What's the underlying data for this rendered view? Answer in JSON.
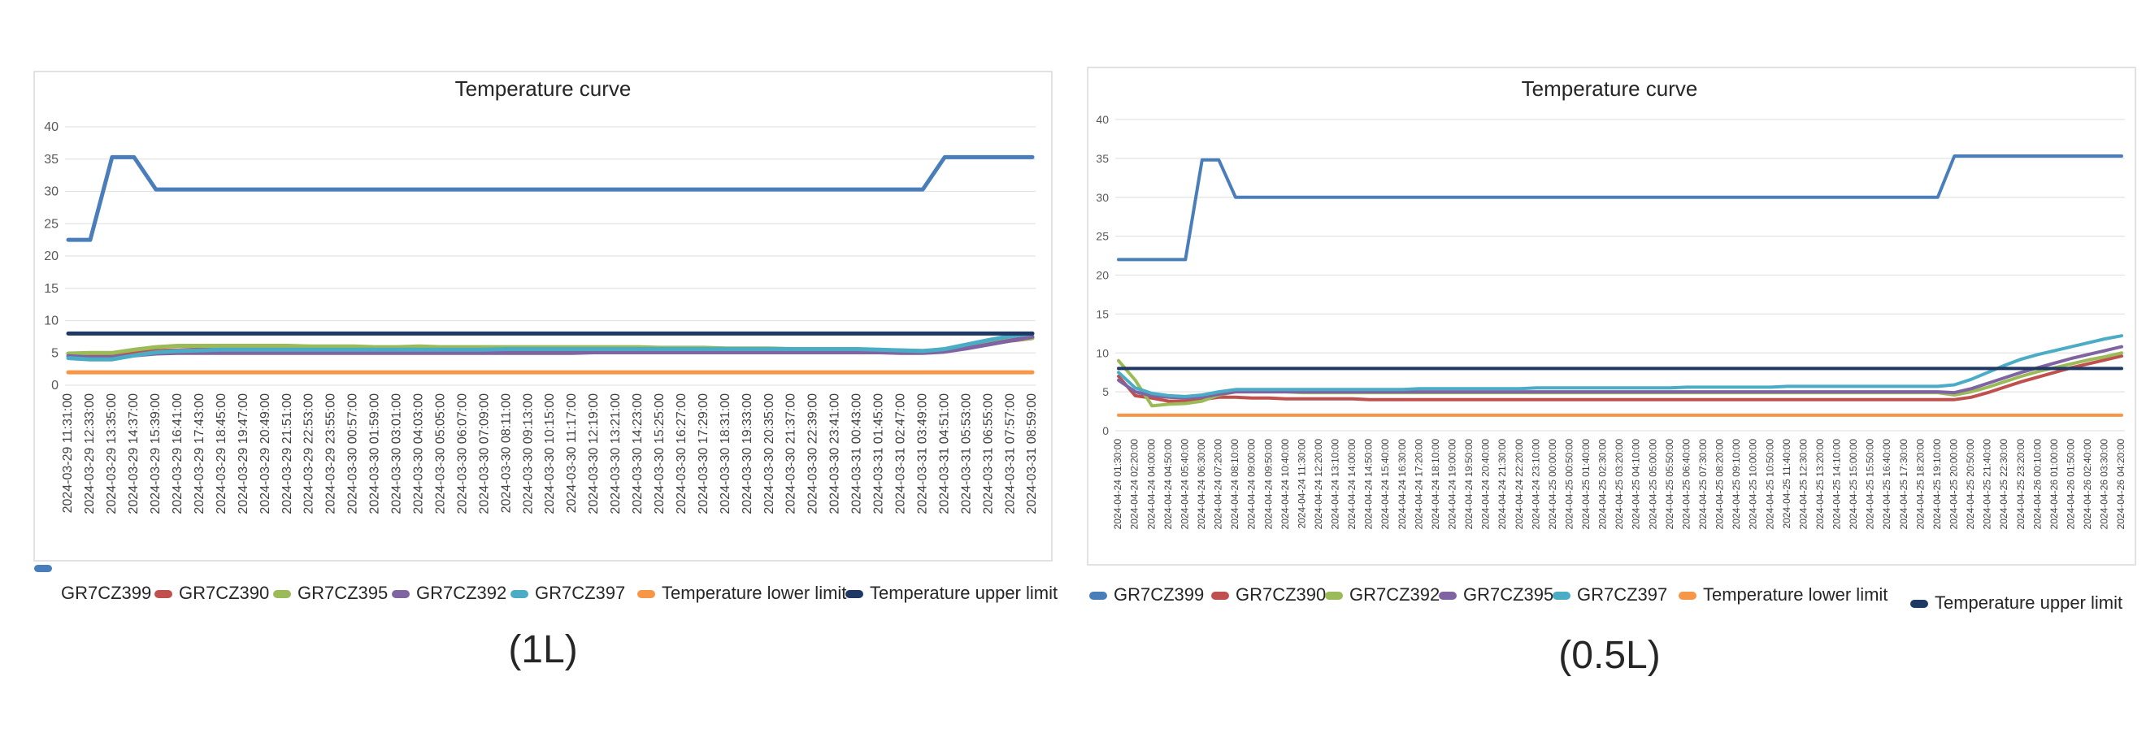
{
  "chart_data": [
    {
      "type": "line",
      "title": "Temperature curve",
      "caption": "(1L)",
      "xlabel": "",
      "ylabel": "",
      "ylim": [
        0,
        40
      ],
      "yticks": [
        0,
        5,
        10,
        15,
        20,
        25,
        30,
        35,
        40
      ],
      "grid": true,
      "legend_position": "bottom",
      "categories": [
        "2024-03-29 11:31:00",
        "2024-03-29 12:33:00",
        "2024-03-29 13:35:00",
        "2024-03-29 14:37:00",
        "2024-03-29 15:39:00",
        "2024-03-29 16:41:00",
        "2024-03-29 17:43:00",
        "2024-03-29 18:45:00",
        "2024-03-29 19:47:00",
        "2024-03-29 20:49:00",
        "2024-03-29 21:51:00",
        "2024-03-29 22:53:00",
        "2024-03-29 23:55:00",
        "2024-03-30 00:57:00",
        "2024-03-30 01:59:00",
        "2024-03-30 03:01:00",
        "2024-03-30 04:03:00",
        "2024-03-30 05:05:00",
        "2024-03-30 06:07:00",
        "2024-03-30 07:09:00",
        "2024-03-30 08:11:00",
        "2024-03-30 09:13:00",
        "2024-03-30 10:15:00",
        "2024-03-30 11:17:00",
        "2024-03-30 12:19:00",
        "2024-03-30 13:21:00",
        "2024-03-30 14:23:00",
        "2024-03-30 15:25:00",
        "2024-03-30 16:27:00",
        "2024-03-30 17:29:00",
        "2024-03-30 18:31:00",
        "2024-03-30 19:33:00",
        "2024-03-30 20:35:00",
        "2024-03-30 21:37:00",
        "2024-03-30 22:39:00",
        "2024-03-30 23:41:00",
        "2024-03-31 00:43:00",
        "2024-03-31 01:45:00",
        "2024-03-31 02:47:00",
        "2024-03-31 03:49:00",
        "2024-03-31 04:51:00",
        "2024-03-31 05:53:00",
        "2024-03-31 06:55:00",
        "2024-03-31 07:57:00",
        "2024-03-31 08:59:00"
      ],
      "series": [
        {
          "name": "GR7CZ399",
          "color": "#4a7ebb",
          "values": [
            22.5,
            22.5,
            35.3,
            35.3,
            30.3,
            30.3,
            30.3,
            30.3,
            30.3,
            30.3,
            30.3,
            30.3,
            30.3,
            30.3,
            30.3,
            30.3,
            30.3,
            30.3,
            30.3,
            30.3,
            30.3,
            30.3,
            30.3,
            30.3,
            30.3,
            30.3,
            30.3,
            30.3,
            30.3,
            30.3,
            30.3,
            30.3,
            30.3,
            30.3,
            30.3,
            30.3,
            30.3,
            30.3,
            30.3,
            30.3,
            35.3,
            35.3,
            35.3,
            35.3,
            35.3
          ]
        },
        {
          "name": "GR7CZ390",
          "color": "#c0504d",
          "values": [
            4.8,
            4.8,
            4.6,
            5.0,
            5.3,
            5.4,
            5.5,
            5.5,
            5.5,
            5.5,
            5.5,
            5.4,
            5.4,
            5.4,
            5.4,
            5.4,
            5.4,
            5.4,
            5.4,
            5.4,
            5.4,
            5.4,
            5.4,
            5.4,
            5.4,
            5.4,
            5.4,
            5.4,
            5.4,
            5.4,
            5.4,
            5.4,
            5.4,
            5.4,
            5.3,
            5.3,
            5.2,
            5.2,
            5.1,
            5.1,
            5.3,
            5.8,
            6.4,
            6.9,
            7.3
          ]
        },
        {
          "name": "GR7CZ395",
          "color": "#9bbb59",
          "values": [
            4.9,
            5.0,
            5.0,
            5.5,
            5.9,
            6.1,
            6.1,
            6.1,
            6.1,
            6.1,
            6.1,
            6.0,
            6.0,
            6.0,
            5.9,
            5.9,
            6.0,
            5.9,
            5.9,
            5.9,
            5.9,
            5.9,
            5.9,
            5.9,
            5.9,
            5.9,
            5.9,
            5.8,
            5.8,
            5.8,
            5.7,
            5.7,
            5.7,
            5.6,
            5.6,
            5.5,
            5.5,
            5.4,
            5.4,
            5.3,
            5.4,
            5.9,
            6.5,
            7.0,
            7.3
          ]
        },
        {
          "name": "GR7CZ392",
          "color": "#8064a2",
          "values": [
            4.5,
            4.3,
            4.3,
            4.6,
            4.9,
            5.0,
            5.0,
            5.0,
            5.0,
            5.0,
            5.0,
            5.0,
            5.0,
            5.0,
            5.0,
            5.0,
            5.0,
            5.0,
            5.0,
            5.0,
            5.0,
            5.0,
            5.0,
            5.0,
            5.1,
            5.1,
            5.1,
            5.1,
            5.1,
            5.1,
            5.1,
            5.1,
            5.1,
            5.1,
            5.1,
            5.1,
            5.1,
            5.1,
            5.0,
            5.0,
            5.2,
            5.7,
            6.3,
            6.9,
            7.5
          ]
        },
        {
          "name": "GR7CZ397",
          "color": "#4bacc6",
          "values": [
            4.2,
            4.0,
            4.0,
            4.6,
            5.1,
            5.3,
            5.4,
            5.5,
            5.5,
            5.5,
            5.5,
            5.5,
            5.5,
            5.5,
            5.5,
            5.5,
            5.5,
            5.5,
            5.5,
            5.5,
            5.6,
            5.6,
            5.6,
            5.6,
            5.6,
            5.6,
            5.6,
            5.6,
            5.6,
            5.6,
            5.6,
            5.6,
            5.6,
            5.6,
            5.6,
            5.6,
            5.6,
            5.5,
            5.4,
            5.3,
            5.6,
            6.3,
            7.0,
            7.6,
            8.0
          ]
        },
        {
          "name": "Temperature lower limit",
          "color": "#f79646",
          "values": [
            2,
            2,
            2,
            2,
            2,
            2,
            2,
            2,
            2,
            2,
            2,
            2,
            2,
            2,
            2,
            2,
            2,
            2,
            2,
            2,
            2,
            2,
            2,
            2,
            2,
            2,
            2,
            2,
            2,
            2,
            2,
            2,
            2,
            2,
            2,
            2,
            2,
            2,
            2,
            2,
            2,
            2,
            2,
            2,
            2
          ]
        },
        {
          "name": "Temperature upper limit",
          "color": "#1f3864",
          "values": [
            8,
            8,
            8,
            8,
            8,
            8,
            8,
            8,
            8,
            8,
            8,
            8,
            8,
            8,
            8,
            8,
            8,
            8,
            8,
            8,
            8,
            8,
            8,
            8,
            8,
            8,
            8,
            8,
            8,
            8,
            8,
            8,
            8,
            8,
            8,
            8,
            8,
            8,
            8,
            8,
            8,
            8,
            8,
            8,
            8
          ]
        }
      ]
    },
    {
      "type": "line",
      "title": "Temperature curve",
      "caption": "(0.5L)",
      "xlabel": "",
      "ylabel": "",
      "ylim": [
        0,
        40
      ],
      "yticks": [
        0,
        5,
        10,
        15,
        20,
        25,
        30,
        35,
        40
      ],
      "grid": true,
      "legend_position": "bottom",
      "categories": [
        "2024-04-24 01:30:00",
        "2024-04-24 02:20:00",
        "2024-04-24 04:00:00",
        "2024-04-24 04:50:00",
        "2024-04-24 05:40:00",
        "2024-04-24 06:30:00",
        "2024-04-24 07:20:00",
        "2024-04-24 08:10:00",
        "2024-04-24 09:00:00",
        "2024-04-24 09:50:00",
        "2024-04-24 10:40:00",
        "2024-04-24 11:30:00",
        "2024-04-24 12:20:00",
        "2024-04-24 13:10:00",
        "2024-04-24 14:00:00",
        "2024-04-24 14:50:00",
        "2024-04-24 15:40:00",
        "2024-04-24 16:30:00",
        "2024-04-24 17:20:00",
        "2024-04-24 18:10:00",
        "2024-04-24 19:00:00",
        "2024-04-24 19:50:00",
        "2024-04-24 20:40:00",
        "2024-04-24 21:30:00",
        "2024-04-24 22:20:00",
        "2024-04-24 23:10:00",
        "2024-04-25 00:00:00",
        "2024-04-25 00:50:00",
        "2024-04-25 01:40:00",
        "2024-04-25 02:30:00",
        "2024-04-25 03:20:00",
        "2024-04-25 04:10:00",
        "2024-04-25 05:00:00",
        "2024-04-25 05:50:00",
        "2024-04-25 06:40:00",
        "2024-04-25 07:30:00",
        "2024-04-25 08:20:00",
        "2024-04-25 09:10:00",
        "2024-04-25 10:00:00",
        "2024-04-25 10:50:00",
        "2024-04-25 11:40:00",
        "2024-04-25 12:30:00",
        "2024-04-25 13:20:00",
        "2024-04-25 14:10:00",
        "2024-04-25 15:00:00",
        "2024-04-25 15:50:00",
        "2024-04-25 16:40:00",
        "2024-04-25 17:30:00",
        "2024-04-25 18:20:00",
        "2024-04-25 19:10:00",
        "2024-04-25 20:00:00",
        "2024-04-25 20:50:00",
        "2024-04-25 21:40:00",
        "2024-04-25 22:30:00",
        "2024-04-25 23:20:00",
        "2024-04-26 00:10:00",
        "2024-04-26 01:00:00",
        "2024-04-26 01:50:00",
        "2024-04-26 02:40:00",
        "2024-04-26 03:30:00",
        "2024-04-26 04:20:00"
      ],
      "series": [
        {
          "name": "GR7CZ399",
          "color": "#4a7ebb",
          "values": [
            22,
            22,
            22,
            22,
            22,
            34.8,
            34.8,
            30.0,
            30.0,
            30.0,
            30.0,
            30.0,
            30.0,
            30.0,
            30.0,
            30.0,
            30.0,
            30.0,
            30.0,
            30.0,
            30.0,
            30.0,
            30.0,
            30.0,
            30.0,
            30.0,
            30.0,
            30.0,
            30.0,
            30.0,
            30.0,
            30.0,
            30.0,
            30.0,
            30.0,
            30.0,
            30.0,
            30.0,
            30.0,
            30.0,
            30.0,
            30.0,
            30.0,
            30.0,
            30.0,
            30.0,
            30.0,
            30.0,
            30.0,
            30.0,
            35.3,
            35.3,
            35.3,
            35.3,
            35.3,
            35.3,
            35.3,
            35.3,
            35.3,
            35.3,
            35.3
          ]
        },
        {
          "name": "GR7CZ390",
          "color": "#c0504d",
          "values": [
            7.0,
            4.5,
            4.2,
            3.8,
            3.8,
            4.0,
            4.3,
            4.3,
            4.2,
            4.2,
            4.1,
            4.1,
            4.1,
            4.1,
            4.1,
            4.0,
            4.0,
            4.0,
            4.0,
            4.0,
            4.0,
            4.0,
            4.0,
            4.0,
            4.0,
            4.0,
            4.0,
            4.0,
            4.0,
            4.0,
            4.0,
            4.0,
            4.0,
            4.0,
            4.0,
            4.0,
            4.0,
            4.0,
            4.0,
            4.0,
            4.0,
            4.0,
            4.0,
            4.0,
            4.0,
            4.0,
            4.0,
            4.0,
            4.0,
            4.0,
            4.0,
            4.3,
            4.9,
            5.6,
            6.3,
            6.9,
            7.5,
            8.1,
            8.6,
            9.1,
            9.6
          ]
        },
        {
          "name": "GR7CZ392",
          "color": "#9bbb59",
          "values": [
            9.0,
            6.5,
            3.2,
            3.4,
            3.5,
            3.8,
            4.6,
            5.0,
            5.0,
            5.0,
            5.0,
            4.9,
            4.9,
            4.9,
            4.9,
            4.9,
            4.9,
            4.9,
            4.9,
            4.9,
            4.9,
            4.9,
            4.9,
            4.9,
            4.9,
            4.9,
            4.9,
            4.9,
            4.9,
            4.9,
            4.9,
            4.9,
            4.9,
            4.9,
            4.9,
            4.9,
            4.9,
            4.9,
            4.9,
            4.9,
            4.9,
            4.9,
            4.9,
            4.9,
            4.9,
            4.9,
            4.9,
            4.9,
            4.9,
            4.9,
            4.6,
            5.0,
            5.6,
            6.3,
            7.0,
            7.6,
            8.1,
            8.6,
            9.1,
            9.5,
            10.0
          ]
        },
        {
          "name": "GR7CZ395",
          "color": "#8064a2",
          "values": [
            6.5,
            5.0,
            4.5,
            4.3,
            4.2,
            4.3,
            4.7,
            5.0,
            5.0,
            5.0,
            5.0,
            5.0,
            5.0,
            5.0,
            5.0,
            5.0,
            5.0,
            5.0,
            5.0,
            5.0,
            5.0,
            5.0,
            5.0,
            5.0,
            5.0,
            5.0,
            5.0,
            5.0,
            5.0,
            5.0,
            5.0,
            5.0,
            5.0,
            5.0,
            5.0,
            5.0,
            5.0,
            5.0,
            5.0,
            5.0,
            5.0,
            5.0,
            5.0,
            5.0,
            5.0,
            5.0,
            5.0,
            5.0,
            5.0,
            5.0,
            4.9,
            5.4,
            6.1,
            6.8,
            7.5,
            8.1,
            8.7,
            9.3,
            9.8,
            10.3,
            10.8
          ]
        },
        {
          "name": "GR7CZ397",
          "color": "#4bacc6",
          "values": [
            7.5,
            5.5,
            4.8,
            4.5,
            4.4,
            4.6,
            5.0,
            5.3,
            5.3,
            5.3,
            5.3,
            5.3,
            5.3,
            5.3,
            5.3,
            5.3,
            5.3,
            5.3,
            5.4,
            5.4,
            5.4,
            5.4,
            5.4,
            5.4,
            5.4,
            5.5,
            5.5,
            5.5,
            5.5,
            5.5,
            5.5,
            5.5,
            5.5,
            5.5,
            5.6,
            5.6,
            5.6,
            5.6,
            5.6,
            5.6,
            5.7,
            5.7,
            5.7,
            5.7,
            5.7,
            5.7,
            5.7,
            5.7,
            5.7,
            5.7,
            5.9,
            6.6,
            7.5,
            8.4,
            9.2,
            9.8,
            10.3,
            10.8,
            11.3,
            11.8,
            12.2
          ]
        },
        {
          "name": "Temperature lower limit",
          "color": "#f79646",
          "values": [
            2,
            2,
            2,
            2,
            2,
            2,
            2,
            2,
            2,
            2,
            2,
            2,
            2,
            2,
            2,
            2,
            2,
            2,
            2,
            2,
            2,
            2,
            2,
            2,
            2,
            2,
            2,
            2,
            2,
            2,
            2,
            2,
            2,
            2,
            2,
            2,
            2,
            2,
            2,
            2,
            2,
            2,
            2,
            2,
            2,
            2,
            2,
            2,
            2,
            2,
            2,
            2,
            2,
            2,
            2,
            2,
            2,
            2,
            2,
            2,
            2
          ]
        },
        {
          "name": "Temperature upper limit",
          "color": "#1f3864",
          "values": [
            8,
            8,
            8,
            8,
            8,
            8,
            8,
            8,
            8,
            8,
            8,
            8,
            8,
            8,
            8,
            8,
            8,
            8,
            8,
            8,
            8,
            8,
            8,
            8,
            8,
            8,
            8,
            8,
            8,
            8,
            8,
            8,
            8,
            8,
            8,
            8,
            8,
            8,
            8,
            8,
            8,
            8,
            8,
            8,
            8,
            8,
            8,
            8,
            8,
            8,
            8,
            8,
            8,
            8,
            8,
            8,
            8,
            8,
            8,
            8,
            8
          ]
        }
      ]
    }
  ]
}
